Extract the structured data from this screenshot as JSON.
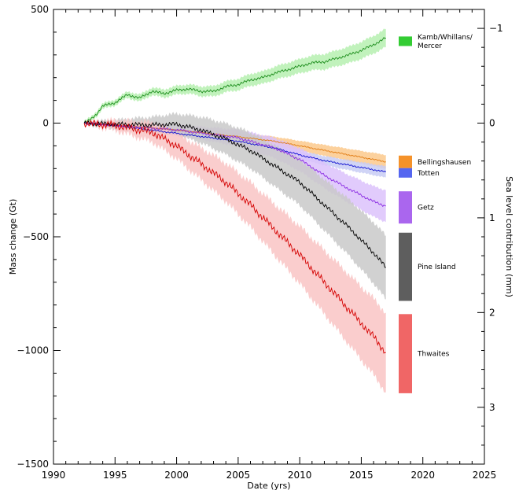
{
  "chart_data": {
    "type": "line",
    "xlabel": "Date (yrs)",
    "ylabel": "Mass change (Gt)",
    "y2label": "Sea level contribution (mm)",
    "xlim": [
      1990,
      2025
    ],
    "ylim": [
      -1500,
      500
    ],
    "y2lim": [
      -1.2,
      3.6
    ],
    "x_ticks": [
      "1990",
      "1995",
      "2000",
      "2005",
      "2010",
      "2015",
      "2020",
      "2025"
    ],
    "y_ticks": [
      "500",
      "0",
      "−500",
      "−1000",
      "−1500"
    ],
    "y2_ticks": [
      "−1",
      "0",
      "1",
      "2",
      "3"
    ],
    "grid": false,
    "legend_placement": "right, inside plot, as colored bars",
    "series": [
      {
        "name": "Kamb/Whillans/Mercer",
        "color": "#1a8c1a",
        "band_color": "#b6f0b0",
        "legend_color": "#33cc33",
        "x": [
          1992.5,
          1993.0,
          1993.5,
          1994.0,
          1995.0,
          1996.0,
          1997.0,
          1998.0,
          1999.0,
          2000.0,
          2001.0,
          2002.0,
          2003.0,
          2004.0,
          2005.0,
          2006.0,
          2007.0,
          2008.0,
          2009.0,
          2010.0,
          2011.0,
          2012.0,
          2013.0,
          2014.0,
          2015.0,
          2016.0,
          2017.0
        ],
        "values": [
          0,
          15,
          40,
          75,
          90,
          125,
          110,
          140,
          130,
          145,
          150,
          140,
          140,
          160,
          170,
          190,
          200,
          220,
          235,
          250,
          265,
          270,
          285,
          300,
          320,
          345,
          375
        ],
        "uncertainty_start": 10,
        "uncertainty_end": 40
      },
      {
        "name": "Bellingshausen",
        "color": "#e07a10",
        "band_color": "#fbc98c",
        "legend_color": "#f5922a",
        "x": [
          1992.5,
          1995.0,
          2000.0,
          2005.0,
          2008.0,
          2010.0,
          2012.0,
          2014.0,
          2016.0,
          2017.0
        ],
        "values": [
          0,
          -8,
          -30,
          -60,
          -80,
          -100,
          -120,
          -140,
          -160,
          -170
        ],
        "uncertainty_start": 2,
        "uncertainty_end": 30
      },
      {
        "name": "Totten",
        "color": "#1010d0",
        "band_color": "#c8cdf5",
        "legend_color": "#5566f0",
        "x": [
          1992.5,
          1995.0,
          2000.0,
          2005.0,
          2008.0,
          2010.0,
          2012.0,
          2014.0,
          2016.0,
          2017.0
        ],
        "values": [
          0,
          -10,
          -45,
          -80,
          -110,
          -140,
          -165,
          -185,
          -205,
          -215
        ],
        "uncertainty_start": 2,
        "uncertainty_end": 25
      },
      {
        "name": "Getz",
        "color": "#8a2be2",
        "band_color": "#dcc2fb",
        "legend_color": "#aa66ee",
        "x": [
          1992.5,
          1995.0,
          2000.0,
          2005.0,
          2008.0,
          2010.0,
          2012.0,
          2014.0,
          2016.0,
          2017.0
        ],
        "values": [
          0,
          -10,
          -30,
          -65,
          -110,
          -160,
          -230,
          -290,
          -345,
          -365
        ],
        "uncertainty_start": 2,
        "uncertainty_end": 70
      },
      {
        "name": "Pine Island",
        "color": "#000000",
        "band_color": "#c9c9c9",
        "legend_color": "#5e5e5e",
        "x": [
          1992.5,
          1995.0,
          1998.0,
          2000.0,
          2002.0,
          2004.0,
          2006.0,
          2008.0,
          2010.0,
          2012.0,
          2014.0,
          2016.0,
          2017.0
        ],
        "values": [
          0,
          -5,
          -8,
          -5,
          -30,
          -70,
          -120,
          -190,
          -260,
          -360,
          -460,
          -570,
          -635
        ],
        "uncertainty_start": 5,
        "uncertainty_end": 140
      },
      {
        "name": "Thwaites",
        "color": "#d40000",
        "band_color": "#f9c4c4",
        "legend_color": "#f06666",
        "x": [
          1992.5,
          1995.0,
          1998.0,
          2000.0,
          2002.0,
          2004.0,
          2006.0,
          2008.0,
          2010.0,
          2012.0,
          2014.0,
          2016.0,
          2017.0
        ],
        "values": [
          0,
          -10,
          -40,
          -100,
          -180,
          -260,
          -360,
          -470,
          -580,
          -700,
          -820,
          -940,
          -1010
        ],
        "uncertainty_start": 5,
        "uncertainty_end": 175
      }
    ]
  }
}
